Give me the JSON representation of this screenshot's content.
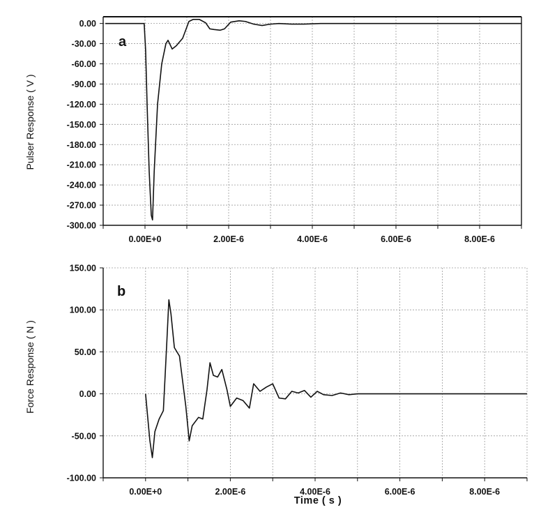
{
  "chart_data": [
    {
      "id": "a",
      "type": "line",
      "panel_label": "a",
      "ylabel": "Pulser Response ( V )",
      "xlabel": "",
      "xlim": [
        -1e-06,
        9e-06
      ],
      "ylim": [
        -300,
        10
      ],
      "yticks": [
        0,
        -30,
        -60,
        -90,
        -120,
        -150,
        -180,
        -210,
        -240,
        -270,
        -300
      ],
      "ytick_labels": [
        "0.00",
        "-30.00",
        "-60.00",
        "-90.00",
        "-120.00",
        "-150.00",
        "-180.00",
        "-210.00",
        "-240.00",
        "-270.00",
        "-300.00"
      ],
      "xticks": [
        0,
        2e-06,
        4e-06,
        6e-06,
        8e-06
      ],
      "xtick_labels": [
        "0.00E+0",
        "2.00E-6",
        "4.00E-6",
        "6.00E-6",
        "8.00E-6"
      ],
      "grid": true,
      "series": [
        {
          "x": [
            -9.5e-07,
            -2e-08,
            1.5e-08,
            5e-08,
            1e-07,
            1.5e-07,
            1.8e-07,
            2.2e-07,
            3e-07,
            4e-07,
            5e-07,
            5.5e-07,
            6.5e-07,
            7.5e-07,
            9e-07,
            1.05e-06,
            1.15e-06,
            1.3e-06,
            1.45e-06,
            1.55e-06,
            1.65e-06,
            1.8e-06,
            1.9e-06,
            2.05e-06,
            2.25e-06,
            2.4e-06,
            2.6e-06,
            2.8e-06,
            3e-06,
            3.2e-06,
            3.5e-06,
            3.8e-06,
            4.2e-06,
            5e-06,
            6e-06,
            7e-06,
            8e-06,
            9e-06
          ],
          "y": [
            0,
            0,
            -40,
            -120,
            -220,
            -285,
            -292,
            -220,
            -120,
            -60,
            -30,
            -25,
            -38,
            -33,
            -22,
            3,
            6,
            6,
            1,
            -8,
            -9,
            -10,
            -8,
            2,
            4,
            3,
            -1,
            -3,
            -1,
            0,
            -1,
            -1,
            0,
            0,
            0,
            0,
            0,
            0
          ]
        }
      ]
    },
    {
      "id": "b",
      "type": "line",
      "panel_label": "b",
      "ylabel": "Force Response ( N )",
      "xlabel": "Time ( s )",
      "xlim": [
        -1e-06,
        9e-06
      ],
      "ylim": [
        -100,
        150
      ],
      "yticks": [
        150,
        100,
        50,
        0,
        -50,
        -100
      ],
      "ytick_labels": [
        "150.00",
        "100.00",
        "50.00",
        "0.00",
        "-50.00",
        "-100.00"
      ],
      "xticks": [
        0,
        2e-06,
        4e-06,
        6e-06,
        8e-06
      ],
      "xtick_labels": [
        "0.00E+0",
        "2.00E-6",
        "4.00E-6",
        "6.00E-6",
        "8.00E-6"
      ],
      "grid": true,
      "series": [
        {
          "x": [
            0,
            1e-07,
            1.6e-07,
            2.2e-07,
            3.2e-07,
            4.2e-07,
            5e-07,
            5.5e-07,
            6e-07,
            6.8e-07,
            8e-07,
            9.5e-07,
            1.03e-06,
            1.1e-06,
            1.25e-06,
            1.35e-06,
            1.45e-06,
            1.52e-06,
            1.6e-06,
            1.7e-06,
            1.8e-06,
            1.92e-06,
            2e-06,
            2.15e-06,
            2.3e-06,
            2.45e-06,
            2.55e-06,
            2.7e-06,
            2.85e-06,
            3e-06,
            3.15e-06,
            3.3e-06,
            3.45e-06,
            3.6e-06,
            3.75e-06,
            3.9e-06,
            4.05e-06,
            4.2e-06,
            4.4e-06,
            4.6e-06,
            4.8e-06,
            5e-06,
            5.3e-06,
            5.6e-06,
            6e-06,
            6.5e-06,
            7e-06,
            7.5e-06,
            8e-06,
            8.5e-06,
            9e-06
          ],
          "y": [
            0,
            -55,
            -76,
            -45,
            -30,
            -20,
            60,
            112,
            95,
            55,
            45,
            -15,
            -56,
            -38,
            -28,
            -30,
            5,
            37,
            22,
            20,
            29,
            5,
            -15,
            -5,
            -8,
            -17,
            12,
            3,
            8,
            12,
            -5,
            -6,
            3,
            1,
            4,
            -4,
            3,
            -1,
            -2,
            1,
            -1,
            0,
            0,
            0,
            0,
            0,
            0,
            0,
            0,
            0,
            0
          ]
        }
      ]
    }
  ]
}
